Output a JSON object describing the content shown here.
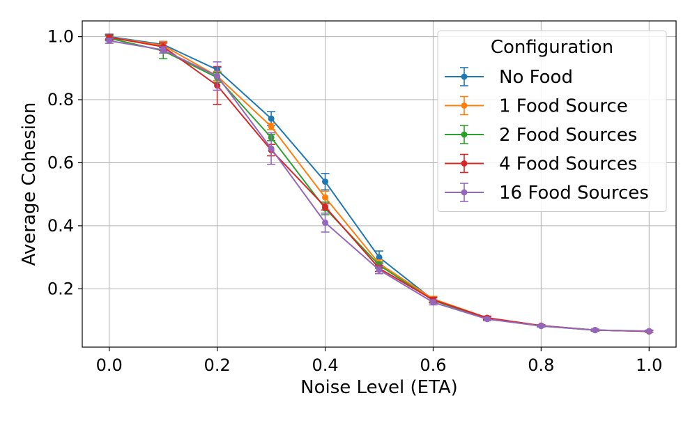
{
  "chart_data": {
    "type": "line",
    "title": "",
    "xlabel": "Noise Level (ETA)",
    "ylabel": "Average Cohesion",
    "xlim": [
      -0.05,
      1.05
    ],
    "ylim": [
      0.015,
      1.05
    ],
    "x_ticks": [
      0.0,
      0.2,
      0.4,
      0.6,
      0.8,
      1.0
    ],
    "x_tick_labels": [
      "0.0",
      "0.2",
      "0.4",
      "0.6",
      "0.8",
      "1.0"
    ],
    "y_ticks": [
      0.2,
      0.4,
      0.6,
      0.8,
      1.0
    ],
    "y_tick_labels": [
      "0.2",
      "0.4",
      "0.6",
      "0.8",
      "1.0"
    ],
    "grid": true,
    "error_bars": true,
    "legend": {
      "title": "Configuration",
      "position": "top-right"
    },
    "x": [
      0.0,
      0.1,
      0.2,
      0.3,
      0.4,
      0.5,
      0.6,
      0.7,
      0.8,
      0.9,
      1.0
    ],
    "series": [
      {
        "name": "No Food",
        "color": "#1f77b4",
        "values": [
          1.0,
          0.975,
          0.895,
          0.74,
          0.54,
          0.3,
          0.165,
          0.105,
          0.083,
          0.069,
          0.065
        ],
        "errors": [
          0.008,
          0.01,
          0.008,
          0.022,
          0.026,
          0.02,
          0.008,
          0.005,
          0.003,
          0.003,
          0.003
        ]
      },
      {
        "name": "1 Food Source",
        "color": "#ff7f0e",
        "values": [
          0.998,
          0.972,
          0.875,
          0.715,
          0.49,
          0.28,
          0.168,
          0.108,
          0.083,
          0.069,
          0.065
        ],
        "errors": [
          0.008,
          0.012,
          0.015,
          0.01,
          0.02,
          0.012,
          0.008,
          0.005,
          0.003,
          0.003,
          0.003
        ]
      },
      {
        "name": "2 Food Sources",
        "color": "#2ca02c",
        "values": [
          0.995,
          0.955,
          0.87,
          0.68,
          0.455,
          0.275,
          0.163,
          0.106,
          0.082,
          0.069,
          0.065
        ],
        "errors": [
          0.008,
          0.025,
          0.015,
          0.01,
          0.02,
          0.01,
          0.008,
          0.005,
          0.003,
          0.003,
          0.003
        ]
      },
      {
        "name": "4 Food Sources",
        "color": "#d62728",
        "values": [
          0.998,
          0.968,
          0.845,
          0.64,
          0.46,
          0.265,
          0.165,
          0.108,
          0.083,
          0.069,
          0.065
        ],
        "errors": [
          0.008,
          0.012,
          0.06,
          0.018,
          0.01,
          0.01,
          0.008,
          0.005,
          0.003,
          0.003,
          0.003
        ]
      },
      {
        "name": "16 Food Sources",
        "color": "#9467bd",
        "values": [
          0.987,
          0.958,
          0.875,
          0.645,
          0.41,
          0.26,
          0.157,
          0.104,
          0.082,
          0.069,
          0.066
        ],
        "errors": [
          0.008,
          0.01,
          0.045,
          0.05,
          0.03,
          0.012,
          0.008,
          0.005,
          0.003,
          0.003,
          0.003
        ]
      }
    ]
  }
}
